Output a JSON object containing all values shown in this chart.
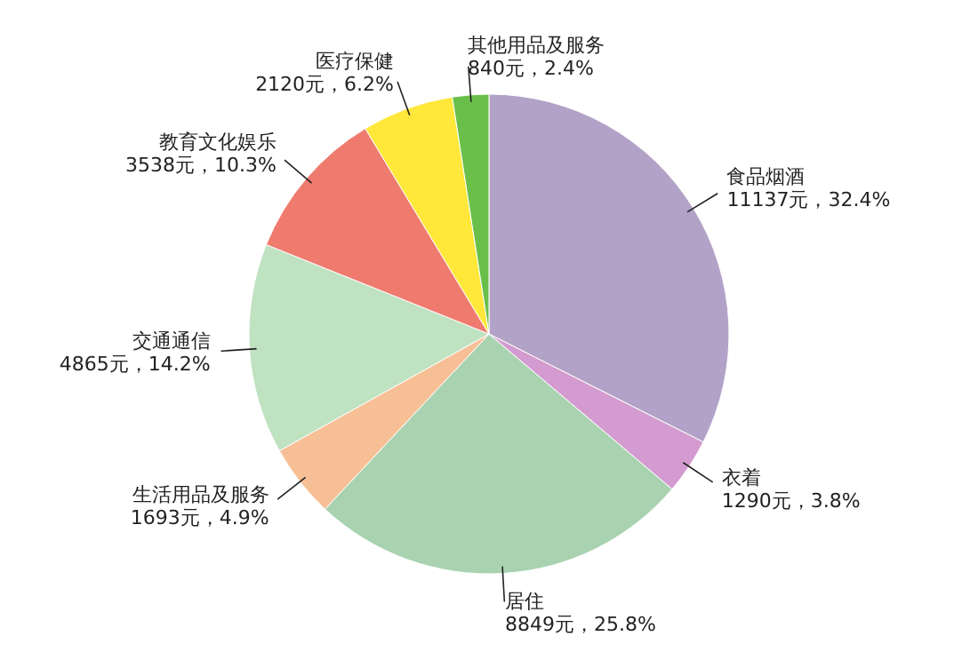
{
  "chart_data": {
    "type": "pie",
    "categories": [
      "食品烟酒",
      "衣着",
      "居住",
      "生活用品及服务",
      "交通通信",
      "教育文化娱乐",
      "医疗保健",
      "其他用品及服务"
    ],
    "values": [
      11137,
      1290,
      8849,
      1693,
      4865,
      3538,
      2120,
      840
    ],
    "value_labels": [
      "11137元，32.4%",
      "1290元，3.8%",
      "8849元，25.8%",
      "1693元，4.9%",
      "4865元，14.2%",
      "3538元，10.3%",
      "2120元，6.2%",
      "840元，2.4%"
    ],
    "colors": [
      "#b3a2c7",
      "#d49bd0",
      "#a9d3b0",
      "#f7bf95",
      "#bfe2c0",
      "#ef7b6f",
      "#ffe83a",
      "#6abf4b"
    ]
  }
}
